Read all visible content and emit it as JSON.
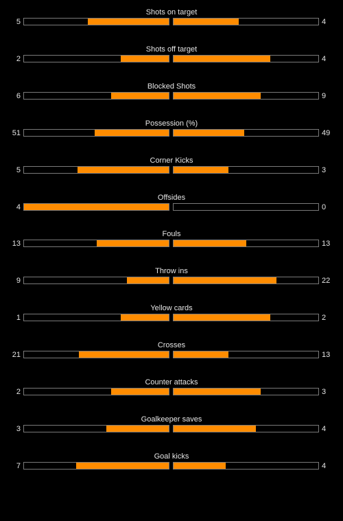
{
  "colors": {
    "background": "#000000",
    "accent": "#ff8c00",
    "bar_border": "#7a7a7a",
    "text": "#e6e6e6"
  },
  "stats": [
    {
      "label": "Shots on target",
      "home": "5",
      "away": "4",
      "home_fill": 0.56,
      "away_fill": 0.45
    },
    {
      "label": "Shots off target",
      "home": "2",
      "away": "4",
      "home_fill": 0.33,
      "away_fill": 0.67
    },
    {
      "label": "Blocked Shots",
      "home": "6",
      "away": "9",
      "home_fill": 0.4,
      "away_fill": 0.6
    },
    {
      "label": "Possession (%)",
      "home": "51",
      "away": "49",
      "home_fill": 0.51,
      "away_fill": 0.49
    },
    {
      "label": "Corner Kicks",
      "home": "5",
      "away": "3",
      "home_fill": 0.63,
      "away_fill": 0.38
    },
    {
      "label": "Offsides",
      "home": "4",
      "away": "0",
      "home_fill": 1.0,
      "away_fill": 0.0
    },
    {
      "label": "Fouls",
      "home": "13",
      "away": "13",
      "home_fill": 0.5,
      "away_fill": 0.5
    },
    {
      "label": "Throw ins",
      "home": "9",
      "away": "22",
      "home_fill": 0.29,
      "away_fill": 0.71
    },
    {
      "label": "Yellow cards",
      "home": "1",
      "away": "2",
      "home_fill": 0.33,
      "away_fill": 0.67
    },
    {
      "label": "Crosses",
      "home": "21",
      "away": "13",
      "home_fill": 0.62,
      "away_fill": 0.38
    },
    {
      "label": "Counter attacks",
      "home": "2",
      "away": "3",
      "home_fill": 0.4,
      "away_fill": 0.6
    },
    {
      "label": "Goalkeeper saves",
      "home": "3",
      "away": "4",
      "home_fill": 0.43,
      "away_fill": 0.57
    },
    {
      "label": "Goal kicks",
      "home": "7",
      "away": "4",
      "home_fill": 0.64,
      "away_fill": 0.36
    }
  ]
}
